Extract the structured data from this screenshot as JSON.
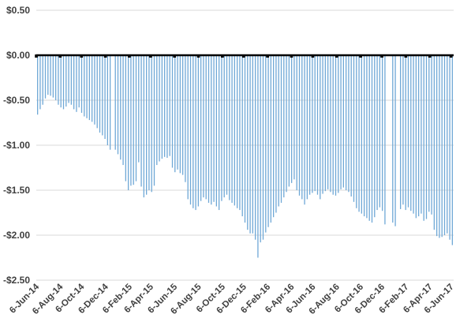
{
  "chart_data": {
    "type": "bar",
    "title": "",
    "xlabel": "",
    "ylabel": "",
    "ylim": [
      -2.5,
      0.5
    ],
    "y_ticks": [
      0.5,
      0,
      -0.5,
      -1,
      -1.5,
      -2,
      -2.5
    ],
    "y_tick_labels": [
      "$0.50",
      "$0.00",
      "-$0.50",
      "-$1.00",
      "-$1.50",
      "-$2.00",
      "-$2.50"
    ],
    "grid": true,
    "bar_color": "#6fa8d6",
    "zero_line_color": "#000000",
    "x_tick_labels": [
      "6-Jun-14",
      "6-Aug-14",
      "6-Oct-14",
      "6-Dec-14",
      "6-Feb-15",
      "6-Apr-15",
      "6-Jun-15",
      "6-Aug-15",
      "6-Oct-15",
      "6-Dec-15",
      "6-Feb-16",
      "6-Apr-16",
      "6-Jun-16",
      "6-Aug-16",
      "6-Oct-16",
      "6-Dec-16",
      "6-Feb-17",
      "6-Apr-17",
      "6-Jun-17"
    ],
    "x_tick_weeks": [
      0,
      9,
      17,
      26,
      35,
      43,
      52,
      61,
      70,
      78,
      87,
      96,
      104,
      113,
      122,
      130,
      139,
      148,
      156
    ],
    "x_week_range": [
      0,
      157
    ],
    "values": [
      -0.66,
      -0.6,
      -0.55,
      -0.48,
      -0.44,
      -0.45,
      -0.47,
      -0.5,
      -0.55,
      -0.58,
      -0.6,
      -0.57,
      -0.53,
      -0.55,
      -0.6,
      -0.63,
      -0.58,
      -0.64,
      -0.68,
      -0.7,
      -0.72,
      -0.74,
      -0.77,
      -0.81,
      -0.86,
      -0.89,
      -0.93,
      -1.0,
      -1.05,
      0,
      -1.05,
      -1.1,
      -1.16,
      -1.22,
      -1.4,
      -1.5,
      -1.45,
      -1.44,
      -1.4,
      -1.19,
      -1.46,
      -1.58,
      -1.55,
      -1.5,
      -1.52,
      -1.45,
      -1.22,
      -1.18,
      -1.15,
      -1.13,
      -1.14,
      -1.12,
      -1.25,
      -1.3,
      -1.27,
      -1.31,
      -1.33,
      -1.41,
      -1.6,
      -1.66,
      -1.7,
      -1.72,
      -1.68,
      -1.62,
      -1.58,
      -1.6,
      -1.64,
      -1.66,
      -1.63,
      -1.68,
      -1.72,
      -1.62,
      -1.58,
      -1.55,
      -1.61,
      -1.64,
      -1.67,
      -1.7,
      -1.72,
      -1.79,
      -1.86,
      -1.94,
      -1.98,
      -1.98,
      -2.05,
      -2.25,
      -2.08,
      -2.05,
      -1.97,
      -1.91,
      -1.86,
      -1.8,
      -1.75,
      -1.68,
      -1.64,
      -1.58,
      -1.52,
      -1.46,
      -1.42,
      -1.38,
      -1.5,
      -1.56,
      -1.6,
      -1.66,
      -1.6,
      -1.55,
      -1.53,
      -1.51,
      -1.55,
      -1.6,
      -1.54,
      -1.51,
      -1.49,
      -1.52,
      -1.55,
      -1.56,
      -1.53,
      -1.49,
      -1.47,
      -1.5,
      -1.52,
      -1.57,
      -1.63,
      -1.7,
      -1.74,
      -1.76,
      -1.79,
      -1.81,
      -1.84,
      -1.86,
      -1.8,
      -1.72,
      -1.69,
      -1.73,
      -1.88,
      0,
      0,
      -1.86,
      -1.9,
      0,
      -1.71,
      -1.66,
      -1.72,
      -1.69,
      -1.73,
      -1.76,
      -1.81,
      -1.79,
      -1.76,
      -1.84,
      -1.82,
      -1.74,
      -1.77,
      -1.94,
      -2.01,
      -2.03,
      -2.02,
      -2.0,
      -1.98,
      -2.05,
      -2.11
    ]
  }
}
